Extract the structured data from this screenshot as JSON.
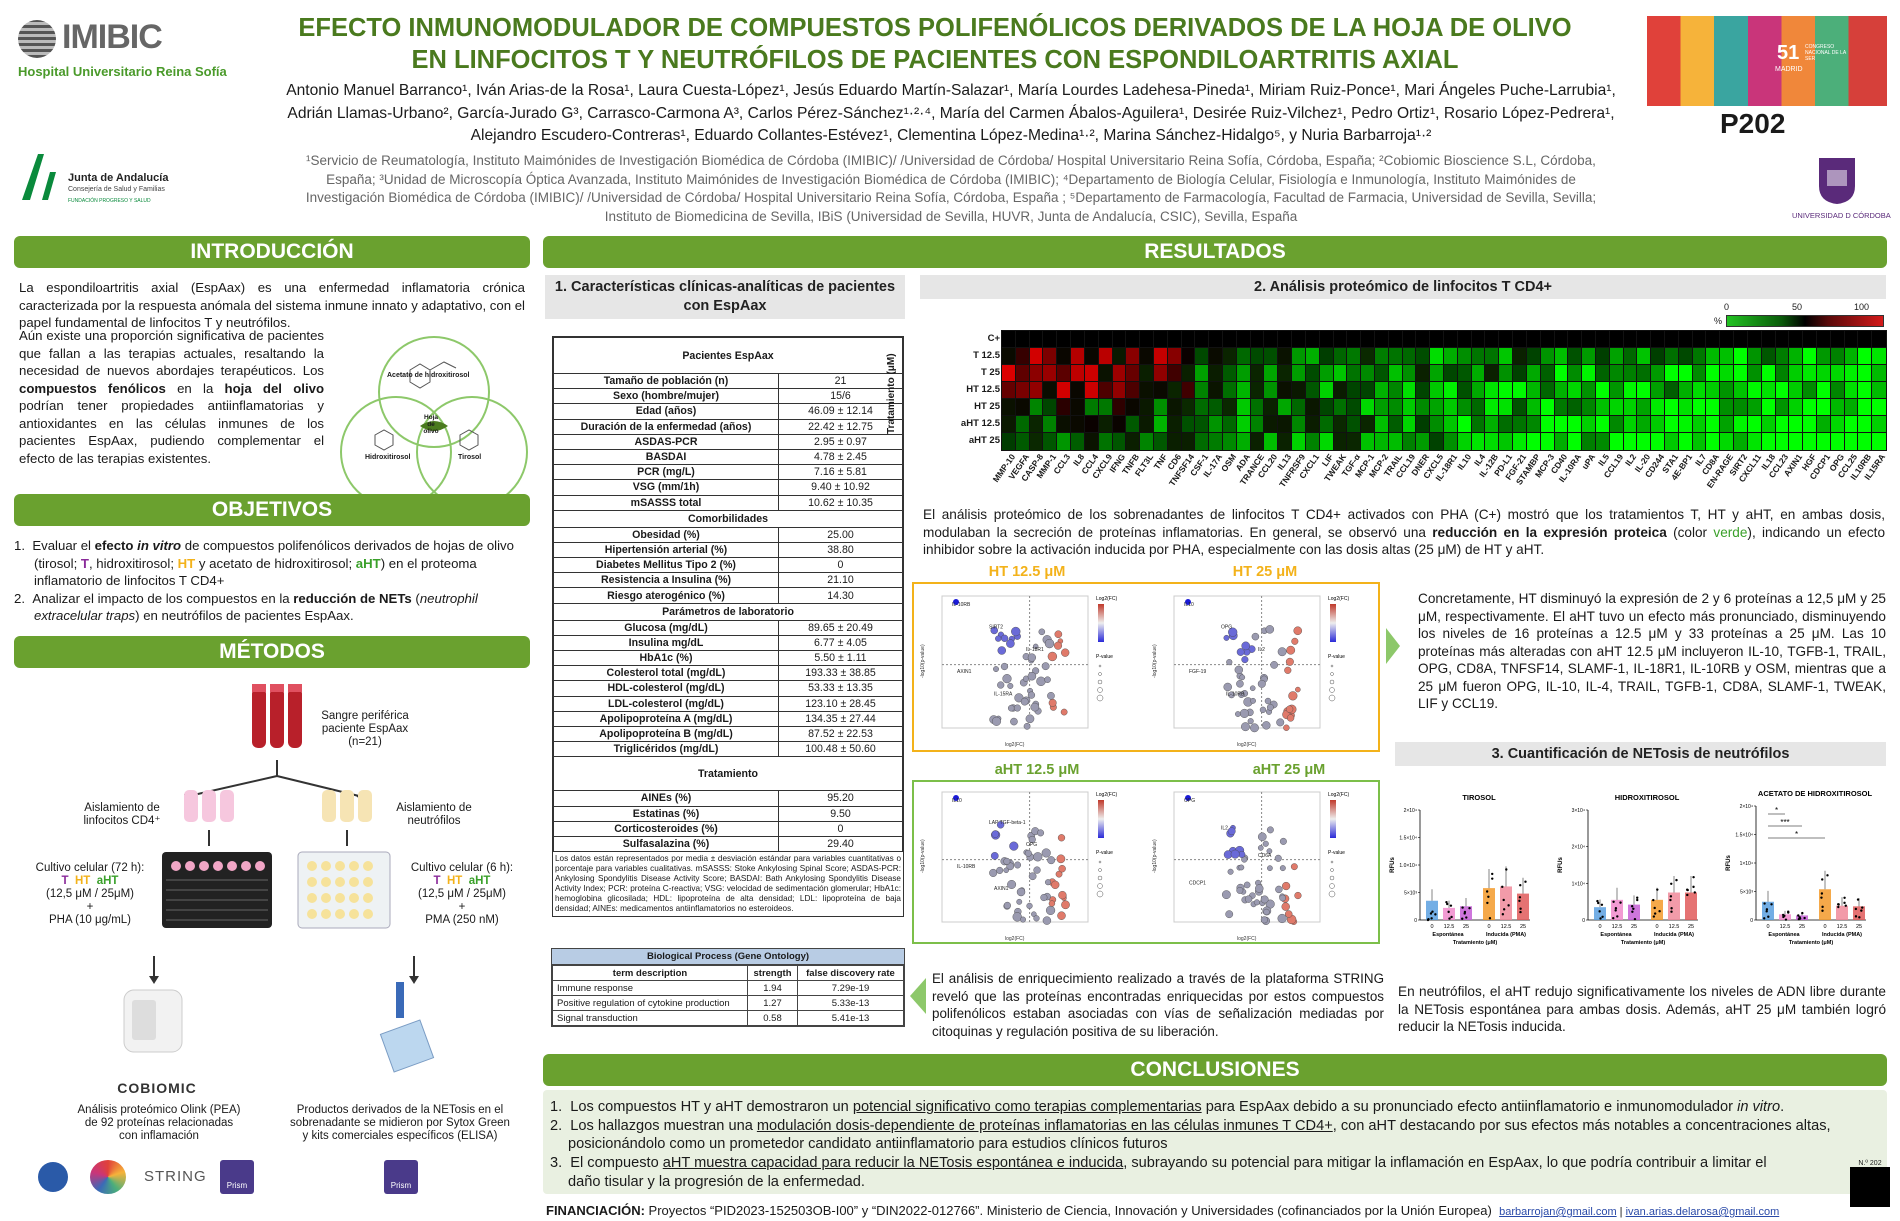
{
  "header": {
    "logo_imibic": "IMIBIC",
    "logo_hospital": "Hospital Universitario Reina Sofía",
    "logo_junta": "Junta de Andalucía",
    "logo_junta_sub": "Consejería de Salud y Familias",
    "logo_junta_sub2": "FUNDACIÓN PROGRESO Y SALUD",
    "title_line1": "EFECTO INMUNOMODULADOR DE COMPUESTOS POLIFENÓLICOS DERIVADOS DE LA HOJA DE OLIVO",
    "title_line2": "EN LINFOCITOS T Y NEUTRÓFILOS DE PACIENTES CON ESPONDILOARTRITIS AXIAL",
    "authors": "Antonio Manuel Barranco¹, Iván Arias-de la Rosa¹, Laura Cuesta-López¹, Jesús Eduardo Martín-Salazar¹, María Lourdes Ladehesa-Pineda¹, Miriam Ruiz-Ponce¹, Mari Ángeles Puche-Larrubia¹, Adrián Llamas-Urbano², García-Jurado G³, Carrasco-Carmona A³, Carlos Pérez-Sánchez¹·²·⁴, María del Carmen Ábalos-Aguilera¹, Desirée Ruiz-Vilchez¹, Pedro Ortiz¹, Rosario López-Pedrera¹, Alejandro Escudero-Contreras¹, Eduardo Collantes-Estévez¹, Clementina López-Medina¹·², Marina Sánchez-Hidalgo⁵, y Nuria Barbarroja¹·²",
    "affiliations": "¹Servicio de Reumatología, Instituto Maimónides de Investigación Biomédica de Córdoba (IMIBIC)/ /Universidad de Córdoba/ Hospital Universitario Reina Sofía, Córdoba, España; ²Cobiomic Bioscience S.L, Córdoba, España; ³Unidad de Microscopía Óptica Avanzada, Instituto Maimónides de Investigación Biomédica de Córdoba (IMIBIC); ⁴Departamento de Biología Celular, Fisiología e Inmunología, Instituto Maimónides de Investigación Biomédica de Córdoba (IMIBIC)/ /Universidad de Córdoba/ Hospital Universitario Reina Sofía, Córdoba, España ; ⁵Departamento de Farmacología, Facultad de Farmacia, Universidad de Sevilla, Sevilla; Instituto de Biomedicina de Sevilla, IBiS (Universidad de Sevilla, HUVR, Junta de Andalucía, CSIC), Sevilla, España",
    "congress_num": "51",
    "congress_text": "CONGRESO NACIONAL DE LA SER",
    "congress_city": "MADRID",
    "poster_id": "P202",
    "logo_uco": "UNIVERSIDAD D CÓRDOBA"
  },
  "sections": {
    "intro": "INTRODUCCIÓN",
    "objetivos": "OBJETIVOS",
    "metodos": "MÉTODOS",
    "resultados": "RESULTADOS",
    "conclusiones": "CONCLUSIONES"
  },
  "intro": {
    "p1": "La espondiloartritis axial (EspAax) es una enfermedad inflamatoria crónica caracterizada por la respuesta anómala del sistema inmune innato y adaptativo, con el papel fundamental de linfocitos T y neutrófilos.",
    "p2a": "Aún existe una proporción significativa de pacientes que fallan a las terapias actuales, resaltando la necesidad de nuevos abordajes terapéuticos. Los ",
    "p2b": "compuestos fenólicos",
    "p2c": " en la ",
    "p2d": "hoja del olivo",
    "p2e": " podrían tener propiedades antiinflamatorias y antioxidantes en las células inmunes de los pacientes EspAax, pudiendo complementar el efecto de las terapias existentes.",
    "venn_top": "Acetato de hidroxitirosol",
    "venn_left": "Hidroxitirosol",
    "venn_right": "Tirosol",
    "venn_center": "Hoja de olivo"
  },
  "objetivos": {
    "o1a": "Evaluar el ",
    "o1b": "efecto ",
    "o1c": "in vitro",
    "o1d": " de compuestos polifenólicos derivados de hojas de olivo (tirosol; ",
    "o1T": "T",
    "o1e": ", hidroxitirosol; ",
    "o1HT": "HT",
    "o1f": " y acetato de hidroxitirosol; ",
    "o1aHT": "aHT",
    "o1g": ") en el proteoma inflamatorio de linfocitos T CD4+",
    "o2a": "Analizar el impacto de los compuestos en la ",
    "o2b": "reducción de NETs",
    "o2c": " (",
    "o2d": "neutrophil extracelular traps",
    "o2e": ") en neutrófilos de pacientes EspAax."
  },
  "metodos": {
    "blood": "Sangre periférica paciente EspAax",
    "blood_n": "(n=21)",
    "iso_left": "Aislamiento de linfocitos CD4⁺",
    "iso_right": "Aislamiento de neutrófilos",
    "cult_left": "Cultivo celular (72 h):",
    "cult_right": "Cultivo celular (6 h):",
    "T": "T",
    "HT": "HT",
    "aHT": "aHT",
    "dose": "(12,5 μM / 25μM)",
    "plus": "+",
    "pha": "PHA (10 μg/mL)",
    "pma": "PMA (250 nM)",
    "cobiomic": "COBIOMIC",
    "olink": "Análisis proteómico Olink (PEA) de 92 proteínas relacionadas con inflamación",
    "net": "Productos derivados de la NETosis en el sobrenadante se midieron por Sytox Green y kits comerciales específicos (ELISA)",
    "string": "STRING",
    "prism": "Prism"
  },
  "res1": {
    "title": "1. Características clínicas-analíticas de pacientes con EspAax",
    "table_header": "Pacientes EspAax",
    "rows_a": [
      [
        "Tamaño de población (n)",
        "21"
      ],
      [
        "Sexo (hombre/mujer)",
        "15/6"
      ],
      [
        "Edad (años)",
        "46.09 ± 12.14"
      ],
      [
        "Duración de la enfermedad (años)",
        "22.42 ± 12.75"
      ],
      [
        "ASDAS-PCR",
        "2.95 ± 0.97"
      ],
      [
        "BASDAI",
        "4.78 ± 2.45"
      ],
      [
        "PCR (mg/L)",
        "7.16 ± 5.81"
      ],
      [
        "VSG (mm/1h)",
        "9.40 ± 10.92"
      ],
      [
        "mSASSS total",
        "10.62 ± 10.35"
      ]
    ],
    "comorb": "Comorbilidades",
    "rows_b": [
      [
        "Obesidad (%)",
        "25.00"
      ],
      [
        "Hipertensión arterial (%)",
        "38.80"
      ],
      [
        "Diabetes Mellitus Tipo 2 (%)",
        "0"
      ],
      [
        "Resistencia a Insulina (%)",
        "21.10"
      ],
      [
        "Riesgo aterogénico (%)",
        "14.30"
      ]
    ],
    "lab": "Parámetros de laboratorio",
    "rows_c": [
      [
        "Glucosa (mg/dL)",
        "89.65 ± 20.49"
      ],
      [
        "Insulina mg/dL",
        "6.77 ± 4.05"
      ],
      [
        "HbA1c (%)",
        "5.50 ± 1.11"
      ],
      [
        "Colesterol total (mg/dL)",
        "193.33 ± 38.85"
      ],
      [
        "HDL-colesterol (mg/dL)",
        "53.33 ± 13.35"
      ],
      [
        "LDL-colesterol (mg/dL)",
        "123.10 ± 28.45"
      ],
      [
        "Apolipoproteína A (mg/dL)",
        "134.35 ± 27.44"
      ],
      [
        "Apolipoproteína B (mg/dL)",
        "87.52 ± 22.53"
      ],
      [
        "Triglicéridos (mg/dL)",
        "100.48 ± 50.60"
      ]
    ],
    "treat": "Tratamiento",
    "rows_d": [
      [
        "AINEs (%)",
        "95.20"
      ],
      [
        "Estatinas (%)",
        "9.50"
      ],
      [
        "Corticosteroides (%)",
        "0"
      ],
      [
        "Sulfasalazina (%)",
        "29.40"
      ]
    ],
    "footnote": "Los datos están representados por media ± desviación estándar para variables cuantitativas o porcentaje para variables cualitativas. mSASSS: Stoke Ankylosing Spinal Score; ASDAS-PCR: Ankylosing Spondylitis Disease Activity Score; BASDAI: Bath Ankylosing Spondylitis Disease Activity Index; PCR: proteína C-reactiva; VSG: velocidad de sedimentación glomerular; HbA1c: hemoglobina glicosilada; HDL: lipoproteína de alta densidad; LDL: lipoproteína de baja densidad; AINEs: medicamentos antiinflamatorios no esteroideos."
  },
  "go": {
    "title": "Biological Process (Gene Ontology)",
    "cols": [
      "term description",
      "strength",
      "false discovery rate"
    ],
    "rows": [
      [
        "Immune response",
        "1.94",
        "7.29e-19"
      ],
      [
        "Positive regulation of cytokine production",
        "1.27",
        "5.33e-13"
      ],
      [
        "Signal transduction",
        "0.58",
        "5.41e-13"
      ]
    ],
    "text": "El análisis de enriquecimiento realizado a través de la plataforma STRING reveló que las proteínas encontradas enriquecidas por estos compuestos polifenólicos estaban asociadas con vías de señalización mediadas por citoquinas y regulación positiva de su liberación."
  },
  "res2": {
    "title": "2. Análisis proteómico de linfocitos T CD4+",
    "ylabel": "Tratamiento (μM)",
    "rows": [
      "C+",
      "T 12.5",
      "T 25",
      "HT 12.5",
      "HT 25",
      "aHT 12.5",
      "aHT 25"
    ],
    "legend_pct": "%",
    "legend_ticks": [
      "0",
      "50",
      "100"
    ],
    "proteins": [
      "MMP-10",
      "VEGFA",
      "CASP-8",
      "MMP-1",
      "CCL3",
      "IL8",
      "CCL4",
      "CXCL9",
      "IFNG",
      "TNFB",
      "FLT3L",
      "TNF",
      "CD6",
      "TNFSF14",
      "CSF-1",
      "IL-17A",
      "OSM",
      "ADA",
      "TRANCE",
      "CCL20",
      "IL13",
      "TNFRSF9",
      "CXCL1",
      "LIF",
      "TWEAK",
      "TGF-α",
      "MCP-1",
      "MCP-2",
      "TRAIL",
      "CCL19",
      "DNER",
      "CXCL5",
      "IL-18R1",
      "IL10",
      "IL4",
      "IL-12B",
      "PD-L1",
      "FGF-21",
      "STAMBP",
      "MCP-3",
      "CD40",
      "IL-10RA",
      "uPA",
      "IL5",
      "CCL19",
      "IL2",
      "IL-20",
      "CD244",
      "STA1",
      "4E-BP1",
      "IL7",
      "CD8A",
      "EN-RAGE",
      "SIRT2",
      "CXCL11",
      "IL18",
      "CCL23",
      "AXIN1",
      "HGF",
      "CDCP1",
      "OPG",
      "CCL25",
      "IL10RB",
      "IL15RA"
    ],
    "text_a": "El análisis proteómico de los sobrenadantes de linfocitos T CD4+ activados con PHA (C+) mostró que los tratamientos T, HT y aHT, en ambas dosis, modulaban la secreción de proteínas inflamatorias. En general, se observó una ",
    "text_b": "reducción en la expresión proteica",
    "text_c": " (color ",
    "text_d": "verde",
    "text_e": "), indicando un efecto inhibidor sobre la activación inducida por PHA, especialmente con las dosis altas (25 μM) de HT y aHT.",
    "volc_titles": [
      "HT 12.5 μM",
      "HT 25 μM",
      "aHT 12.5 μM",
      "aHT 25 μM"
    ],
    "volc_x": "log2(FC)",
    "volc_y": "-log10(p-value)",
    "volc_legend_fc": "Log2(FC)",
    "volc_legend_p": "P-value",
    "volc_labels": [
      [
        "IL-10RB",
        "SIRT2",
        "IL-18R1",
        "AXIN1",
        "IL-15RA"
      ],
      [
        "IL10",
        "OPG",
        "IL2",
        "FGF-19",
        "IL-10RB"
      ],
      [
        "IL10",
        "LAP TGF-beta-1",
        "OPG",
        "IL-10RB",
        "AXIN1"
      ],
      [
        "OPG",
        "IL2",
        "CD6A",
        "CDCP1"
      ]
    ],
    "text_right": "Concretamente, HT disminuyó la expresión de 2 y 6 proteínas a 12,5 μM y 25 μM, respectivamente. El aHT tuvo un efecto más pronunciado, disminuyendo los niveles de 16 proteínas a 12.5 μM y 33 proteínas a 25 μM. Las 10 proteínas más alteradas con aHT 12.5 μM incluyeron IL-10, TGFB-1, TRAIL, OPG, CD8A, TNFSF14, SLAMF-1, IL-18R1, IL-10RB y OSM, mientras que a 25 μM fueron OPG, IL-10, IL-4, TRAIL, TGFB-1, CD8A, SLAMF-1, TWEAK, LIF y CCL19."
  },
  "res3": {
    "title": "3. Cuantificación de NETosis de neutrófilos",
    "charts": [
      {
        "title": "TIROSOL",
        "ylabel": "RFUs",
        "yticks": [
          "0",
          "5×10³",
          "1.0×10⁴",
          "1.5×10⁴",
          "2×10⁴"
        ],
        "ymax": 20000,
        "categories": [
          "0",
          "12.5",
          "25",
          "0",
          "12.5",
          "25"
        ],
        "values": [
          3500,
          2200,
          2500,
          5800,
          6100,
          4800
        ],
        "sig": []
      },
      {
        "title": "HIDROXITIROSOL",
        "ylabel": "RFUs",
        "yticks": [
          "0",
          "1×10⁴",
          "2×10⁴",
          "3×10⁴"
        ],
        "ymax": 30000,
        "categories": [
          "0",
          "12.5",
          "25",
          "0",
          "12.5",
          "25"
        ],
        "values": [
          3500,
          5500,
          4200,
          5500,
          7500,
          7500
        ],
        "sig": []
      },
      {
        "title": "ACETATO DE HIDROXITIROSOL",
        "ylabel": "RFUs",
        "yticks": [
          "0",
          "5×10³",
          "1×10⁴",
          "1.5×10⁴",
          "2×10⁴"
        ],
        "ymax": 20000,
        "categories": [
          "0",
          "12.5",
          "25",
          "0",
          "12.5",
          "25"
        ],
        "values": [
          3200,
          1000,
          800,
          5400,
          2500,
          2400
        ],
        "sig": [
          "*",
          "***",
          "*"
        ]
      }
    ],
    "group_a": "Espontánea",
    "group_b": "Inducida (PMA)",
    "xlabel": "Tratamiento (μM)",
    "text": "En neutrófilos, el aHT redujo significativamente los niveles de ADN libre durante la NETosis espontánea para ambas dosis. Además, aHT 25 μM también logró reducir la NETosis inducida."
  },
  "conclusiones": {
    "c1a": "Los compuestos HT y aHT demostraron un ",
    "c1b": "potencial significativo como terapias complementarias",
    "c1c": " para EspAax debido a su pronunciado efecto antiinflamatorio e inmunomodulador ",
    "c1d": "in vitro",
    "c2a": "Los hallazgos muestran una ",
    "c2b": "modulación dosis-dependiente de proteínas inflamatorias en las células inmunes T CD4+",
    "c2c": ", con aHT destacando por sus efectos más notables a concentraciones altas, posicionándolo como un prometedor candidato antiinflamatorio para estudios clínicos futuros",
    "c3a": "El compuesto ",
    "c3b": "aHT muestra capacidad para reducir la NETosis espontánea e inducida",
    "c3c": ", subrayando su potencial para mitigar la inflamación en EspAax, lo que podría contribuir a limitar el daño tisular y la progresión de la enfermedad."
  },
  "footer": {
    "label": "FINANCIACIÓN:",
    "text": " Proyectos “PID2023-152503OB-I00” y “DIN2022-012766”. Ministerio de Ciencia, Innovación y Universidades (cofinanciados por la Unión Europea)",
    "email1": "barbarrojan@gmail.com",
    "sep": " | ",
    "email2": "ivan.arias.delarosa@gmail.com",
    "qr": "N.º 202"
  },
  "colors": {
    "green": "#6aa12f",
    "title_green": "#4a7a1e",
    "yellow_frame": "#f3b21a"
  }
}
